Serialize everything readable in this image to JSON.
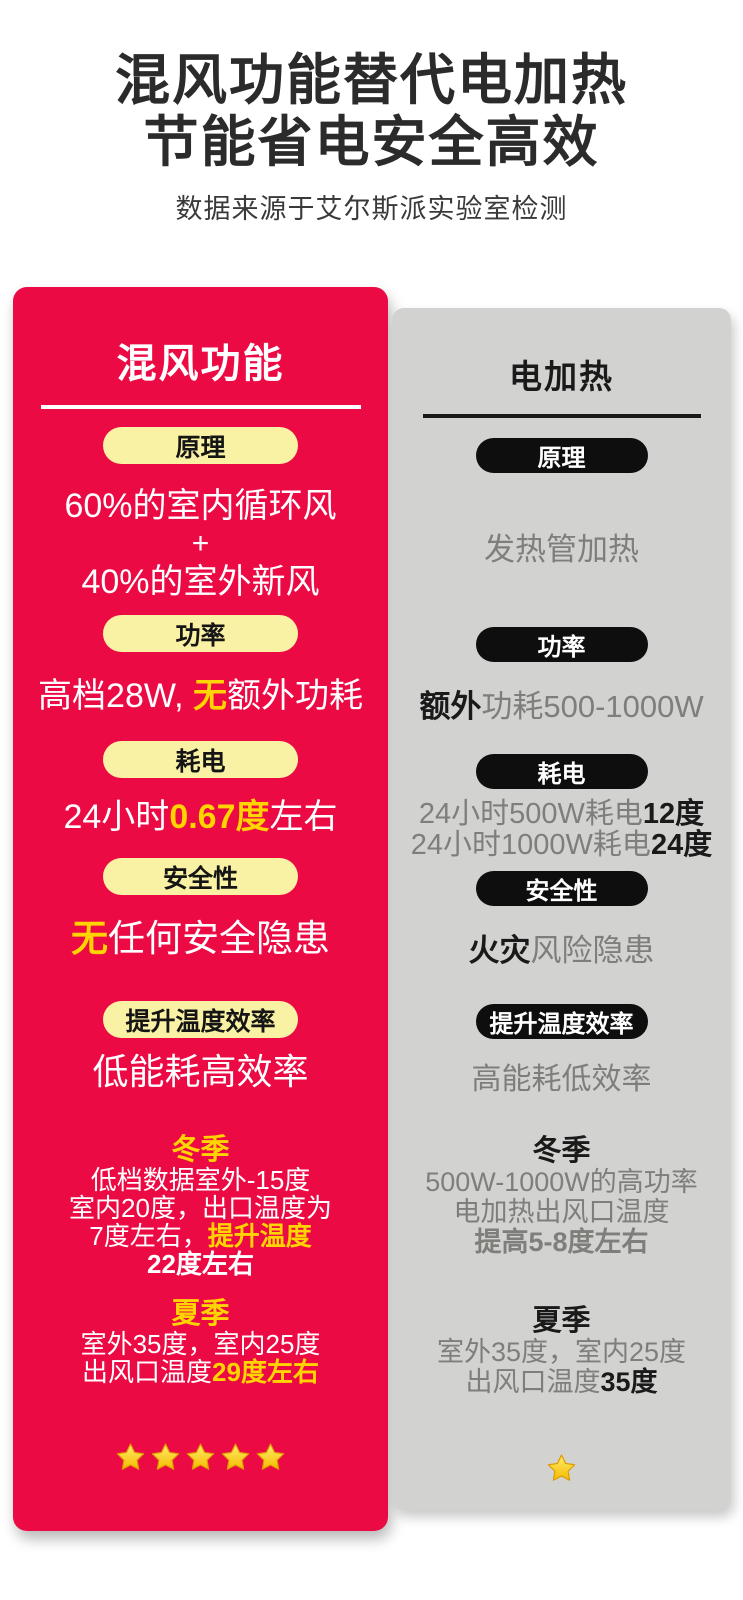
{
  "header": {
    "title_line1": "混风功能替代电加热",
    "title_line2": "节能省电安全高效",
    "subtitle": "数据来源于艾尔斯派实验室检测"
  },
  "colors": {
    "card_red": "#EC0A45",
    "card_gray": "#D2D2D0",
    "pill_yellow": "#F9F1A4",
    "pill_black": "#0e0e0e",
    "accent_yellow": "#FFD400",
    "text_dark": "#1a1a1a",
    "text_gray": "#7e7e7b",
    "star_gold": "#F7C400"
  },
  "left_card": {
    "title": "混风功能",
    "principle_label": "原理",
    "principle_line1": "60%的室内循环风",
    "principle_plus": "+",
    "principle_line2": "40%的室外新风",
    "power_label": "功率",
    "power_pre": "高档28W, ",
    "power_em": "无",
    "power_post": "额外功耗",
    "consumption_label": "耗电",
    "consumption_pre": "24小时",
    "consumption_em": "0.67度",
    "consumption_post": "左右",
    "safety_label": "安全性",
    "safety_em": "无",
    "safety_post": "任何安全隐患",
    "efficiency_label": "提升温度效率",
    "efficiency_text": "低能耗高效率",
    "winter_title": "冬季",
    "winter_line1": "低档数据室外-15度",
    "winter_line2": "室内20度，出口温度为",
    "winter_line3_pre": "7度左右，",
    "winter_line3_em": "提升温度",
    "winter_line4_em": "22度左右",
    "summer_title": "夏季",
    "summer_line1": "室外35度，室内25度",
    "summer_line2_pre": "出风口温度",
    "summer_line2_em": "29度左右",
    "stars": 5
  },
  "right_card": {
    "title": "电加热",
    "principle_label": "原理",
    "principle_text": "发热管加热",
    "power_label": "功率",
    "power_strong": "额外",
    "power_post": "功耗500-1000W",
    "consumption_label": "耗电",
    "consumption_line1_pre": "24小时500W耗电",
    "consumption_line1_strong": "12度",
    "consumption_line2_pre": "24小时1000W耗电",
    "consumption_line2_strong": "24度",
    "safety_label": "安全性",
    "safety_strong": "火灾",
    "safety_post": "风险隐患",
    "efficiency_label": "提升温度效率",
    "efficiency_text": "高能耗低效率",
    "winter_title": "冬季",
    "winter_line1": "500W-1000W的高功率",
    "winter_line2": "电加热出风口温度",
    "winter_line3_strong": "提高5-8度左右",
    "summer_title": "夏季",
    "summer_line1": "室外35度，室内25度",
    "summer_line2_pre": "出风口温度",
    "summer_line2_strong": "35度",
    "stars": 1
  }
}
